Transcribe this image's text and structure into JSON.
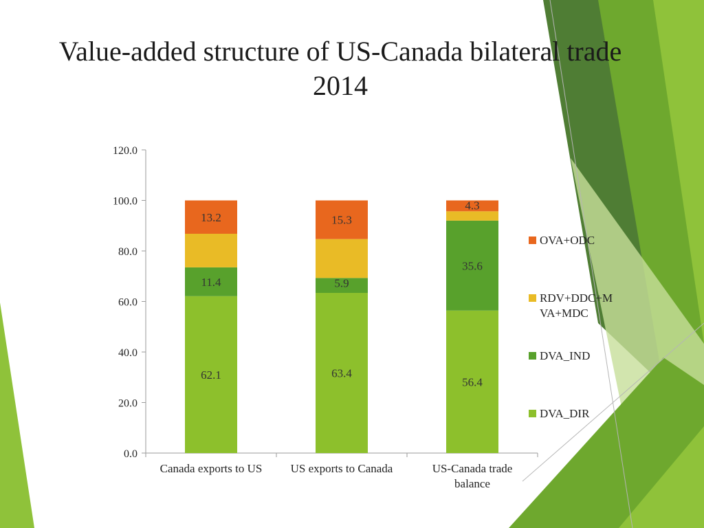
{
  "slide": {
    "title_line1": "Value-added structure of US-Canada bilateral trade",
    "title_line2": "2014"
  },
  "colors": {
    "bg_dark_green": "#4f7d34",
    "bg_green": "#6ea82e",
    "bg_light_green": "#8fc23a",
    "bg_pale_green": "#c7df9a"
  },
  "chart_data": {
    "type": "bar",
    "stacked": true,
    "categories": [
      [
        "Canada exports to US"
      ],
      [
        "US exports to Canada"
      ],
      [
        "US-Canada trade",
        "balance"
      ]
    ],
    "series": [
      {
        "name": "DVA_DIR",
        "color": "#8dc02c",
        "values": [
          62.1,
          63.4,
          56.4
        ],
        "labels": [
          "62.1",
          "63.4",
          "56.4"
        ]
      },
      {
        "name": "DVA_IND",
        "color": "#58a12c",
        "values": [
          11.4,
          5.9,
          35.6
        ],
        "labels": [
          "11.4",
          "5.9",
          "35.6"
        ]
      },
      {
        "name": "RDV+DDC+MVA+MDC",
        "legend_lines": [
          "RDV+DDC+M",
          "VA+MDC"
        ],
        "color": "#e9bb26",
        "values": [
          13.3,
          15.4,
          3.7
        ],
        "labels": [
          "",
          "",
          ""
        ]
      },
      {
        "name": "OVA+ODC",
        "color": "#e8671e",
        "values": [
          13.2,
          15.3,
          4.3
        ],
        "labels": [
          "13.2",
          "15.3",
          "4.3"
        ]
      }
    ],
    "ylim": [
      0,
      120
    ],
    "yticks": [
      "0.0",
      "20.0",
      "40.0",
      "60.0",
      "80.0",
      "100.0",
      "120.0"
    ],
    "legend_position": "right",
    "grid": false
  }
}
